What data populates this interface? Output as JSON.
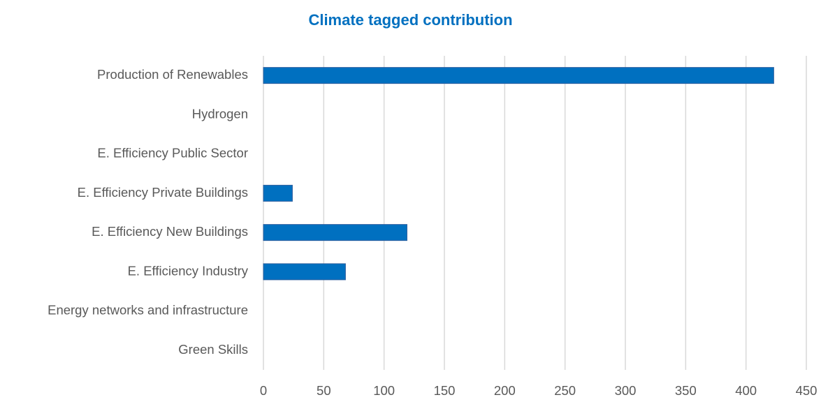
{
  "chart_data": {
    "type": "bar",
    "orientation": "horizontal",
    "title": "Climate tagged contribution",
    "xlabel": "",
    "ylabel": "",
    "categories": [
      "Production of Renewables",
      "Hydrogen",
      "E. Efficiency Public Sector",
      "E. Efficiency Private Buildings",
      "E. Efficiency New Buildings",
      "E. Efficiency Industry",
      "Energy networks and infrastructure",
      "Green Skills"
    ],
    "values": [
      423,
      0,
      0,
      24,
      119,
      68,
      0,
      0
    ],
    "xlim": [
      0,
      450
    ],
    "xticks": [
      0,
      50,
      100,
      150,
      200,
      250,
      300,
      350,
      400,
      450
    ],
    "grid": "vertical",
    "legend": "none",
    "colors": {
      "bar": "#0070c0",
      "bar_edge": "#2e5f9e",
      "grid": "#d9d9d9",
      "title": "#0070c0",
      "text": "#595959"
    }
  }
}
